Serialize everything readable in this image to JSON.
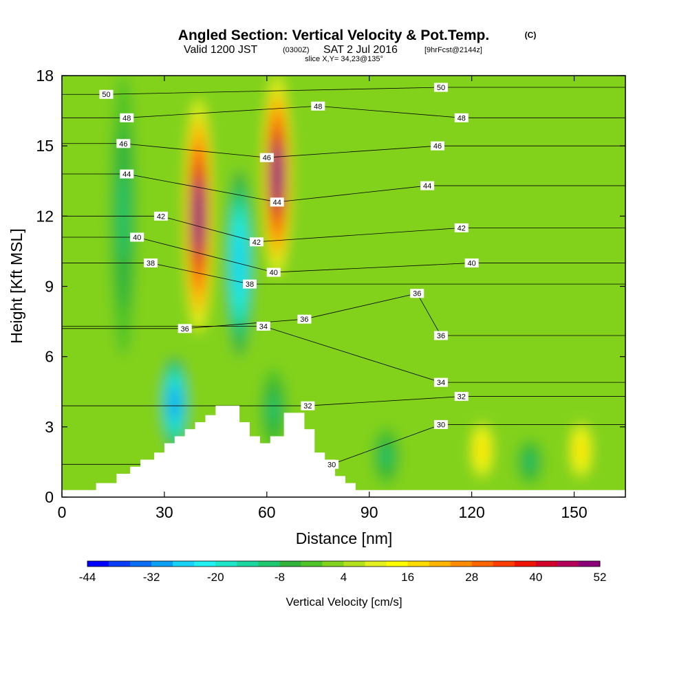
{
  "header": {
    "title": "Angled Section: Vertical Velocity & Pot.Temp.",
    "copyright": "(C)",
    "valid_line_main": "Valid 1200 JST",
    "valid_line_utc": "(0300Z)",
    "valid_line_date": "SAT 2 Jul 2016",
    "valid_line_fcst": "[9hrFcst@2144z]",
    "slice_line": "slice X,Y= 34,23@135°"
  },
  "chart_data": {
    "type": "heatmap",
    "xlabel": "Distance [nm]",
    "ylabel": "Height [Kft MSL]",
    "xlim": [
      0,
      165
    ],
    "ylim": [
      0,
      18
    ],
    "x_ticks": [
      0,
      30,
      60,
      90,
      120,
      150
    ],
    "y_ticks": [
      0,
      3,
      6,
      9,
      12,
      15,
      18
    ],
    "grid": false,
    "colorbar": {
      "label": "Vertical Velocity [cm/s]",
      "levels": [
        -44,
        -40,
        -36,
        -32,
        -28,
        -24,
        -20,
        -16,
        -12,
        -8,
        -4,
        0,
        4,
        8,
        12,
        16,
        20,
        24,
        28,
        32,
        36,
        40,
        44,
        48,
        52
      ],
      "tick_labels": [
        -44,
        -32,
        -20,
        -8,
        4,
        16,
        28,
        40,
        52
      ],
      "colors": [
        "#0000ff",
        "#0a3cf5",
        "#0a6ef5",
        "#0ca0f5",
        "#1ad2f5",
        "#22f0f0",
        "#1ee6c8",
        "#1cd6a0",
        "#1ec870",
        "#32b43c",
        "#50c328",
        "#82d21e",
        "#b4e11e",
        "#e1f01e",
        "#ffff00",
        "#ffdc00",
        "#ffb400",
        "#ff8c00",
        "#ff6400",
        "#ff3c00",
        "#f01400",
        "#d20028",
        "#b4005a",
        "#8c0078",
        "#64008c"
      ]
    },
    "vertical_velocity_features": [
      {
        "kind": "updraft",
        "x_center": 40,
        "z_bottom": 7,
        "z_top": 17,
        "peak_cm_s": 52
      },
      {
        "kind": "updraft",
        "x_center": 63,
        "z_bottom": 9.5,
        "z_top": 18,
        "peak_cm_s": 52
      },
      {
        "kind": "downdraft",
        "x_center": 52,
        "z_bottom": 6,
        "z_top": 14,
        "peak_cm_s": -28
      },
      {
        "kind": "downdraft",
        "x_center": 33,
        "z_bottom": 2,
        "z_top": 6,
        "peak_cm_s": -32
      },
      {
        "kind": "downdraft",
        "x_center": 18,
        "z_bottom": 6,
        "z_top": 18,
        "peak_cm_s": -10
      },
      {
        "kind": "downdraft",
        "x_center": 62,
        "z_bottom": 2,
        "z_top": 5.5,
        "peak_cm_s": -10
      },
      {
        "kind": "downdraft",
        "x_center": 95,
        "z_bottom": 0.5,
        "z_top": 3,
        "peak_cm_s": -10
      },
      {
        "kind": "downdraft",
        "x_center": 137,
        "z_bottom": 0.5,
        "z_top": 2.5,
        "peak_cm_s": -10
      },
      {
        "kind": "updraft",
        "x_center": 123,
        "z_bottom": 0.5,
        "z_top": 3.5,
        "peak_cm_s": 18
      },
      {
        "kind": "updraft",
        "x_center": 152,
        "z_bottom": 0.5,
        "z_top": 3.5,
        "peak_cm_s": 18
      }
    ],
    "terrain_kft": [
      [
        0,
        0.3
      ],
      [
        10,
        0.3
      ],
      [
        10,
        0.6
      ],
      [
        16,
        0.6
      ],
      [
        16,
        1
      ],
      [
        20,
        1
      ],
      [
        20,
        1.3
      ],
      [
        23,
        1.3
      ],
      [
        23,
        1.6
      ],
      [
        27,
        1.6
      ],
      [
        27,
        1.9
      ],
      [
        30,
        1.9
      ],
      [
        30,
        2.3
      ],
      [
        33,
        2.3
      ],
      [
        33,
        2.6
      ],
      [
        36,
        2.6
      ],
      [
        36,
        2.9
      ],
      [
        39,
        2.9
      ],
      [
        39,
        3.2
      ],
      [
        42,
        3.2
      ],
      [
        42,
        3.5
      ],
      [
        45,
        3.5
      ],
      [
        45,
        3.9
      ],
      [
        52,
        3.9
      ],
      [
        52,
        3.2
      ],
      [
        55,
        3.2
      ],
      [
        55,
        2.6
      ],
      [
        58,
        2.6
      ],
      [
        58,
        2.3
      ],
      [
        61,
        2.3
      ],
      [
        61,
        2.6
      ],
      [
        65,
        2.6
      ],
      [
        65,
        3.6
      ],
      [
        71,
        3.6
      ],
      [
        71,
        2.9
      ],
      [
        74,
        2.9
      ],
      [
        74,
        1.9
      ],
      [
        77,
        1.9
      ],
      [
        77,
        1.6
      ],
      [
        80,
        1.6
      ],
      [
        80,
        0.9
      ],
      [
        83,
        0.9
      ],
      [
        83,
        0.6
      ],
      [
        86,
        0.6
      ],
      [
        86,
        0.3
      ],
      [
        165,
        0.3
      ]
    ],
    "isentropes": [
      {
        "theta": 50,
        "label_positions": [
          [
            13,
            17.2
          ],
          [
            111,
            17.5
          ]
        ]
      },
      {
        "theta": 48,
        "label_positions": [
          [
            19,
            16.2
          ],
          [
            75,
            16.7
          ],
          [
            117,
            16.2
          ]
        ]
      },
      {
        "theta": 46,
        "label_positions": [
          [
            18,
            15.1
          ],
          [
            60,
            14.5
          ],
          [
            110,
            15
          ]
        ]
      },
      {
        "theta": 44,
        "label_positions": [
          [
            19,
            13.8
          ],
          [
            63,
            12.6
          ],
          [
            107,
            13.3
          ]
        ]
      },
      {
        "theta": 42,
        "label_positions": [
          [
            29,
            12
          ],
          [
            57,
            10.9
          ],
          [
            117,
            11.5
          ]
        ]
      },
      {
        "theta": 40,
        "label_positions": [
          [
            22,
            11.1
          ],
          [
            62,
            9.6
          ],
          [
            120,
            10
          ]
        ]
      },
      {
        "theta": 38,
        "label_positions": [
          [
            26,
            10
          ],
          [
            55,
            9.1
          ]
        ]
      },
      {
        "theta": 36,
        "label_positions": [
          [
            36,
            7.2
          ],
          [
            71,
            7.6
          ],
          [
            104,
            8.7
          ],
          [
            111,
            6.9
          ]
        ]
      },
      {
        "theta": 34,
        "label_positions": [
          [
            59,
            7.3
          ],
          [
            111,
            4.9
          ]
        ]
      },
      {
        "theta": 32,
        "label_positions": [
          [
            72,
            3.9
          ],
          [
            117,
            4.3
          ]
        ]
      },
      {
        "theta": 30,
        "label_positions": [
          [
            79,
            1.4
          ],
          [
            111,
            3.1
          ]
        ]
      }
    ]
  }
}
